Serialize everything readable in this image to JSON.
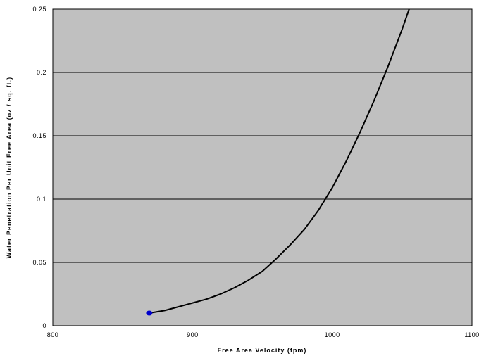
{
  "chart_data": {
    "type": "line",
    "title": "",
    "xlabel": "Free Area Velocity (fpm)",
    "ylabel": "Water Penetration Per Unit Free Area (oz / sq. ft.)",
    "xlim": [
      800,
      1100
    ],
    "ylim": [
      0,
      0.25
    ],
    "x_ticks": [
      "800",
      "900",
      "1000",
      "1100"
    ],
    "y_ticks": [
      "0",
      "0.05",
      "0.1",
      "0.15",
      "0.2",
      "0.25"
    ],
    "grid": "horizontal",
    "legend": "none",
    "plot_background": "#c0c0c0",
    "series": [
      {
        "line_color": "#000000",
        "x": [
          869,
          880,
          890,
          900,
          910,
          920,
          930,
          940,
          950,
          960,
          970,
          980,
          990,
          1000,
          1010,
          1020,
          1030,
          1040,
          1050,
          1055
        ],
        "y": [
          0.01,
          0.012,
          0.015,
          0.018,
          0.021,
          0.025,
          0.03,
          0.036,
          0.043,
          0.053,
          0.064,
          0.076,
          0.091,
          0.109,
          0.13,
          0.153,
          0.178,
          0.205,
          0.234,
          0.25
        ]
      }
    ],
    "markers": [
      {
        "x": 869,
        "y": 0.01,
        "color": "#0000cc"
      }
    ]
  }
}
